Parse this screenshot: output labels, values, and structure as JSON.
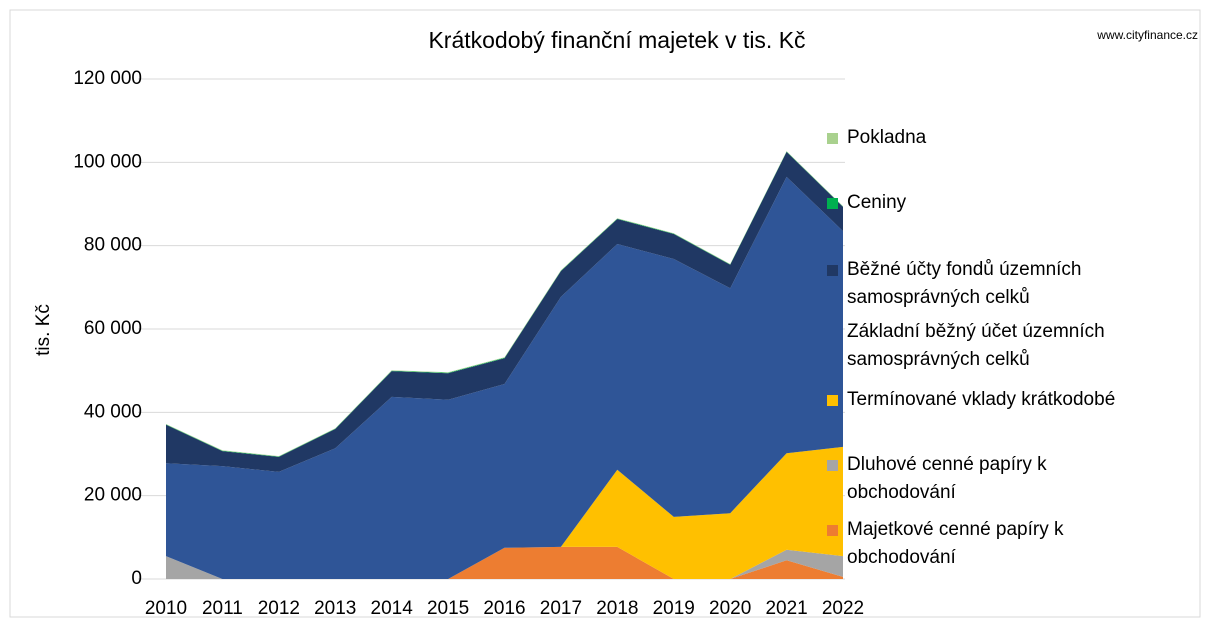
{
  "chart_data": {
    "type": "stacked-area",
    "title": "Krátkodobý finanční majetek v tis. Kč",
    "source": "www.cityfinance.cz",
    "y_label": "tis. Kč",
    "x": [
      2010,
      2011,
      2012,
      2013,
      2014,
      2015,
      2016,
      2017,
      2018,
      2019,
      2020,
      2021,
      2022
    ],
    "xlim": [
      2010,
      2022
    ],
    "ylim": [
      0,
      120000
    ],
    "yticks": [
      {
        "value": 0,
        "label": "0"
      },
      {
        "value": 20000,
        "label": "20 000"
      },
      {
        "value": 40000,
        "label": "40 000"
      },
      {
        "value": 60000,
        "label": "60 000"
      },
      {
        "value": 80000,
        "label": "80 000"
      },
      {
        "value": 100000,
        "label": "100 000"
      },
      {
        "value": 120000,
        "label": "120 000"
      }
    ],
    "grid": true,
    "legend": "right",
    "series": [
      {
        "name": "Majetkové cenné papíry k obchodování",
        "color": "#ed7d31",
        "values": [
          0,
          0,
          0,
          0,
          0,
          0,
          7500,
          7700,
          7700,
          0,
          0,
          4500,
          500
        ]
      },
      {
        "name": "Dluhové cenné papíry k obchodování",
        "color": "#a5a5a5",
        "values": [
          5500,
          0,
          0,
          0,
          0,
          0,
          0,
          0,
          0,
          0,
          0,
          2500,
          5000
        ]
      },
      {
        "name": "Termínované vklady krátkodobé",
        "color": "#ffc000",
        "values": [
          0,
          0,
          0,
          0,
          0,
          0,
          0,
          0,
          18500,
          14900,
          15800,
          23200,
          26200
        ]
      },
      {
        "name": "Základní běžný účet územních samosprávných celků",
        "color": "#2f5597",
        "values": [
          22300,
          27100,
          25700,
          31400,
          43700,
          43000,
          39300,
          60000,
          54200,
          61900,
          54000,
          66300,
          51800
        ]
      },
      {
        "name": "Běžné účty fondů územních samosprávných celků",
        "color": "#203864",
        "values": [
          9200,
          3600,
          3600,
          4600,
          6200,
          6400,
          6200,
          6200,
          6000,
          6000,
          5600,
          6000,
          5800
        ]
      },
      {
        "name": "Ceniny",
        "color": "#00b050",
        "values": [
          100,
          100,
          100,
          100,
          100,
          100,
          100,
          100,
          100,
          100,
          100,
          100,
          100
        ]
      },
      {
        "name": "Pokladna",
        "color": "#a9d18e",
        "values": [
          100,
          100,
          100,
          100,
          100,
          100,
          100,
          100,
          100,
          100,
          100,
          100,
          100
        ]
      }
    ]
  }
}
